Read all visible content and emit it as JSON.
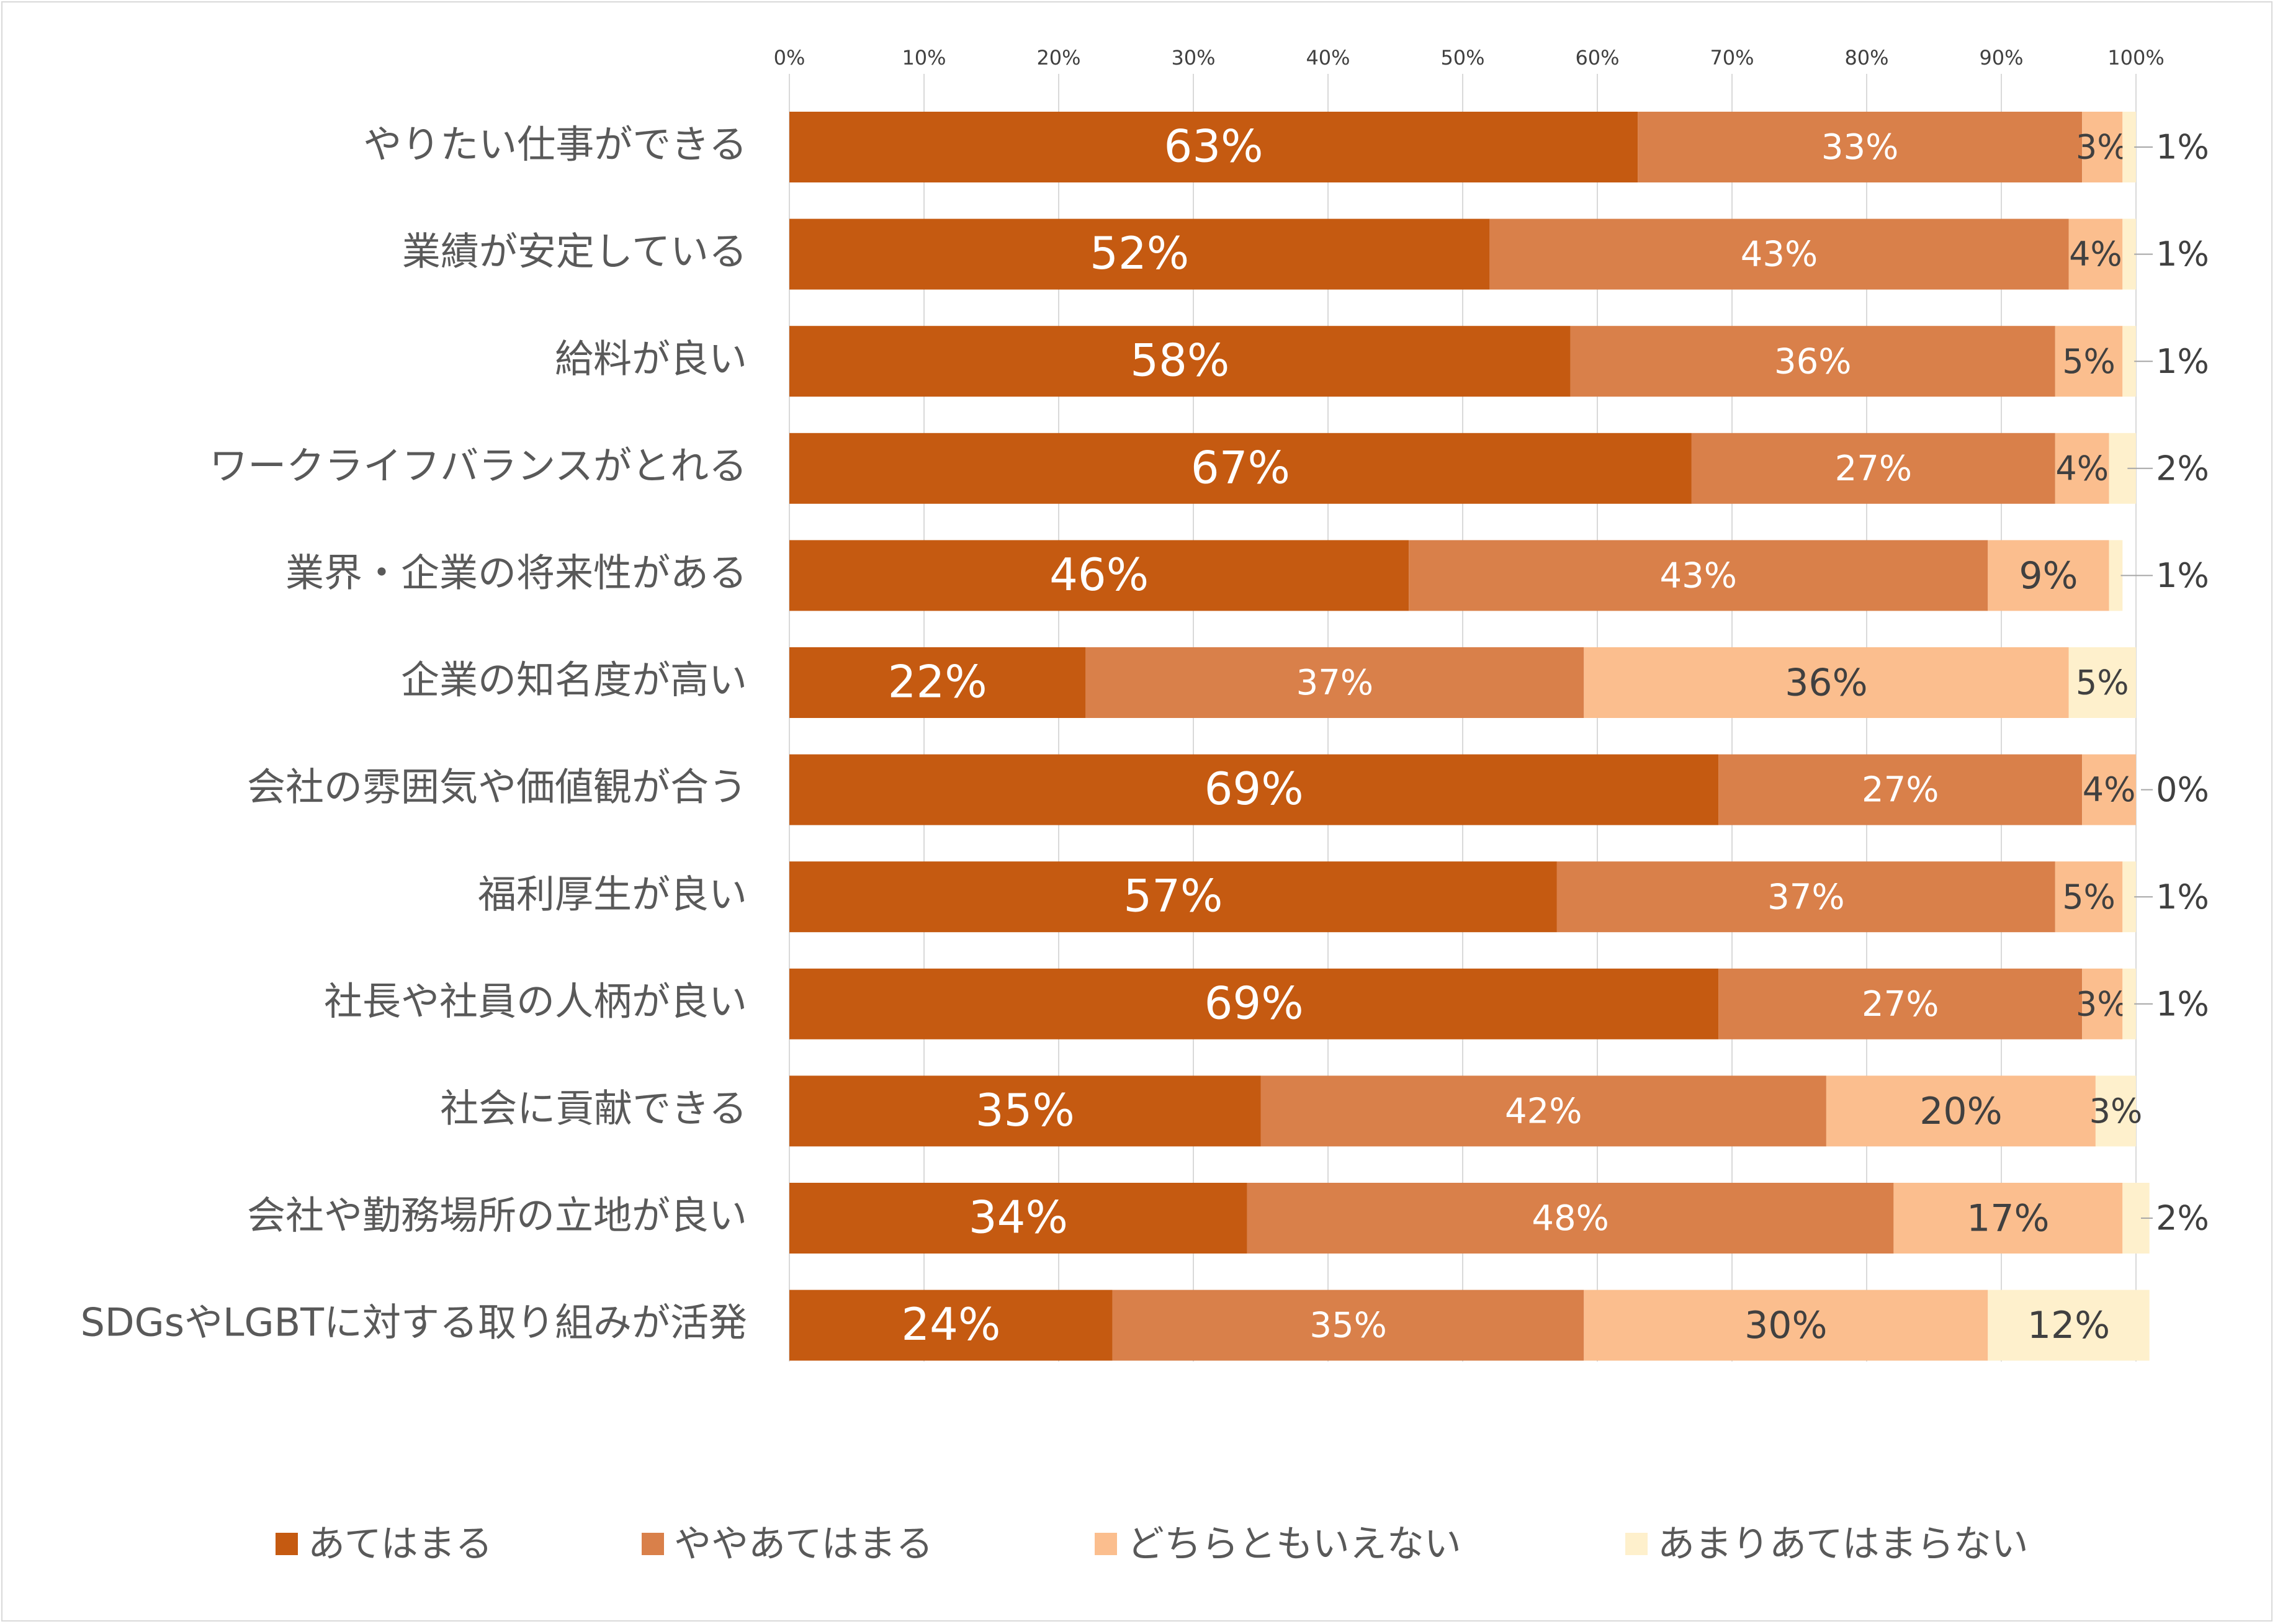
{
  "chart_data": {
    "type": "bar",
    "orientation": "horizontal",
    "stacked": "percent",
    "categories": [
      "やりたい仕事ができる",
      "業績が安定している",
      "給料が良い",
      "ワークライフバランスがとれる",
      "業界・企業の将来性がある",
      "企業の知名度が高い",
      "会社の雰囲気や価値観が合う",
      "福利厚生が良い",
      "社長や社員の人柄が良い",
      "社会に貢献できる",
      "会社や勤務場所の立地が良い",
      "SDGsやLGBTに対する取り組みが活発"
    ],
    "series": [
      {
        "name": "あてはまる",
        "color": "#C55A11",
        "values": [
          63,
          52,
          58,
          67,
          46,
          22,
          69,
          57,
          69,
          35,
          34,
          24
        ],
        "labels": [
          "63%",
          "52%",
          "58%",
          "67%",
          "46%",
          "22%",
          "69%",
          "57%",
          "69%",
          "35%",
          "34%",
          "24%"
        ]
      },
      {
        "name": "ややあてはまる",
        "color": "#D9804A",
        "values": [
          33,
          43,
          36,
          27,
          43,
          37,
          27,
          37,
          27,
          42,
          48,
          35
        ],
        "labels": [
          "33%",
          "43%",
          "36%",
          "27%",
          "43%",
          "37%",
          "27%",
          "37%",
          "27%",
          "42%",
          "48%",
          "35%"
        ]
      },
      {
        "name": "どちらともいえない",
        "color": "#FBBE8E",
        "values": [
          3,
          4,
          5,
          4,
          9,
          36,
          4,
          5,
          3,
          20,
          17,
          30
        ],
        "labels": [
          "3%",
          "4%",
          "5%",
          "4%",
          "9%",
          "36%",
          "4%",
          "5%",
          "3%",
          "20%",
          "17%",
          "30%"
        ]
      },
      {
        "name": "あまりあてはまらない",
        "color": "#FEF0CC",
        "values": [
          1,
          1,
          1,
          2,
          1,
          5,
          0,
          1,
          1,
          3,
          2,
          12
        ],
        "labels": [
          "1%",
          "1%",
          "1%",
          "2%",
          "1%",
          "5%",
          "0%",
          "1%",
          "1%",
          "3%",
          "2%",
          "12%"
        ]
      }
    ],
    "x_ticks": [
      "0%",
      "10%",
      "20%",
      "30%",
      "40%",
      "50%",
      "60%",
      "70%",
      "80%",
      "90%",
      "100%"
    ],
    "xlim": [
      0,
      100
    ],
    "grid": true,
    "legend_position": "bottom"
  }
}
